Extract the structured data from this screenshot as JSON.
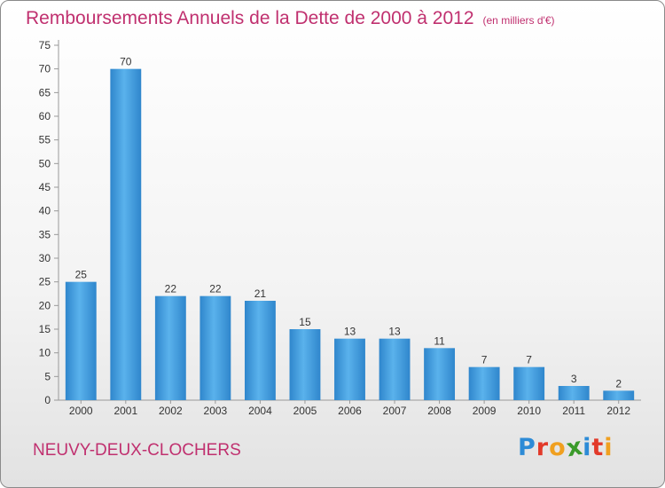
{
  "title": "Remboursements Annuels de la Dette de 2000 à 2012",
  "unit": "(en milliers d'€)",
  "commune": "NEUVY-DEUX-CLOCHERS",
  "logo": {
    "letters": [
      "P",
      "r",
      "o",
      "x",
      "i",
      "t",
      "i"
    ],
    "colors": [
      "#2d8bd6",
      "#e23a2a",
      "#f0a020",
      "#3a9a2a",
      "#2d8bd6",
      "#e23a2a",
      "#f0a020"
    ]
  },
  "chart_data": {
    "type": "bar",
    "categories": [
      "2000",
      "2001",
      "2002",
      "2003",
      "2004",
      "2005",
      "2006",
      "2007",
      "2008",
      "2009",
      "2010",
      "2011",
      "2012"
    ],
    "values": [
      25,
      70,
      22,
      22,
      21,
      15,
      13,
      13,
      11,
      7,
      7,
      3,
      2
    ],
    "data_labels": [
      "25",
      "70",
      "22",
      "22",
      "21",
      "15",
      "13",
      "13",
      "11",
      "7",
      "7",
      "3",
      "2"
    ],
    "y_ticks": [
      0,
      5,
      10,
      15,
      20,
      25,
      30,
      35,
      40,
      45,
      50,
      55,
      60,
      65,
      70,
      75
    ],
    "ylim": [
      0,
      75
    ],
    "grid": false,
    "bar_color": "#3c9de0"
  }
}
